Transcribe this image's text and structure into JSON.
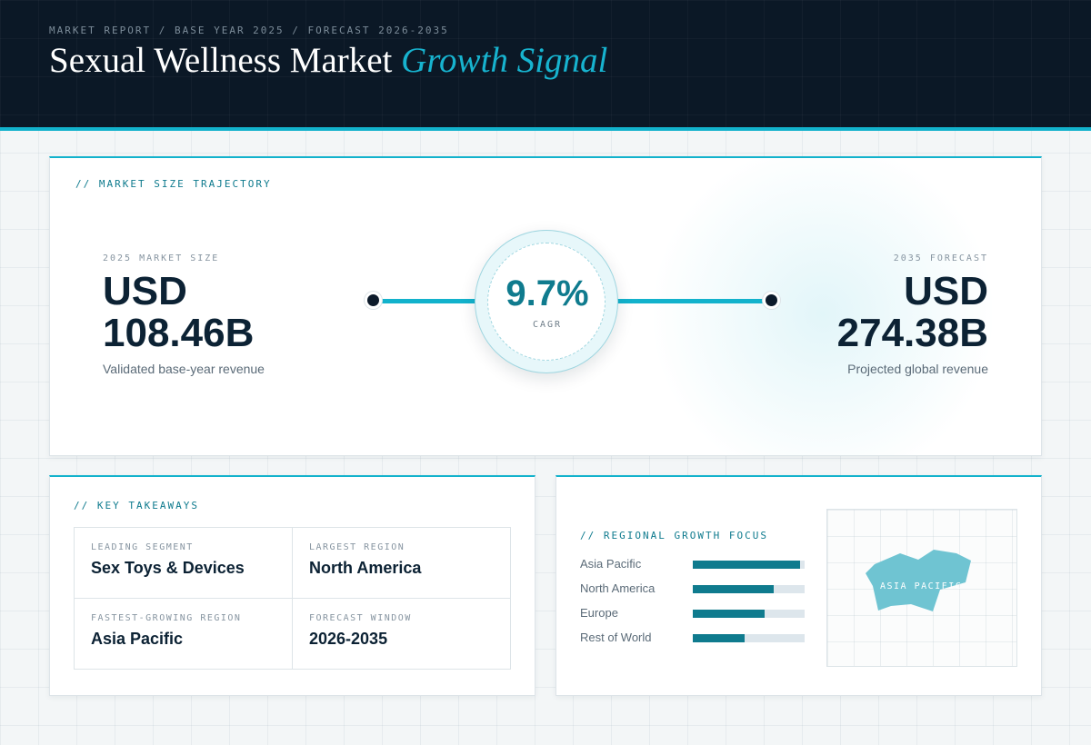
{
  "header": {
    "breadcrumb": "MARKET REPORT / BASE YEAR 2025 / FORECAST 2026-2035",
    "title_main": "Sexual Wellness Market ",
    "title_accent": "Growth Signal"
  },
  "trajectory": {
    "section_label": "// MARKET SIZE TRAJECTORY",
    "base": {
      "label": "2025 MARKET SIZE",
      "currency": "USD",
      "value": "108.46B",
      "description": "Validated base-year revenue"
    },
    "forecast": {
      "label": "2035 FORECAST",
      "currency": "USD",
      "value": "274.38B",
      "description": "Projected global revenue"
    },
    "cagr": {
      "value": "9.7%",
      "label": "CAGR"
    }
  },
  "takeaways": {
    "section_label": "// KEY TAKEAWAYS",
    "items": [
      {
        "label": "LEADING SEGMENT",
        "value": "Sex Toys & Devices"
      },
      {
        "label": "LARGEST REGION",
        "value": "North America"
      },
      {
        "label": "FASTEST-GROWING REGION",
        "value": "Asia Pacific"
      },
      {
        "label": "FORECAST WINDOW",
        "value": "2026-2035"
      }
    ]
  },
  "regional": {
    "section_label": "// REGIONAL GROWTH FOCUS",
    "regions": [
      {
        "name": "Asia Pacific",
        "level": 0.96
      },
      {
        "name": "North America",
        "level": 0.72
      },
      {
        "name": "Europe",
        "level": 0.64
      },
      {
        "name": "Rest of World",
        "level": 0.46
      }
    ],
    "map_label": "ASIA PACIFIC",
    "colors": {
      "accent": "#12b2cc",
      "bar": "#0f7b8e",
      "map_shape": "#6fc4d2"
    }
  }
}
